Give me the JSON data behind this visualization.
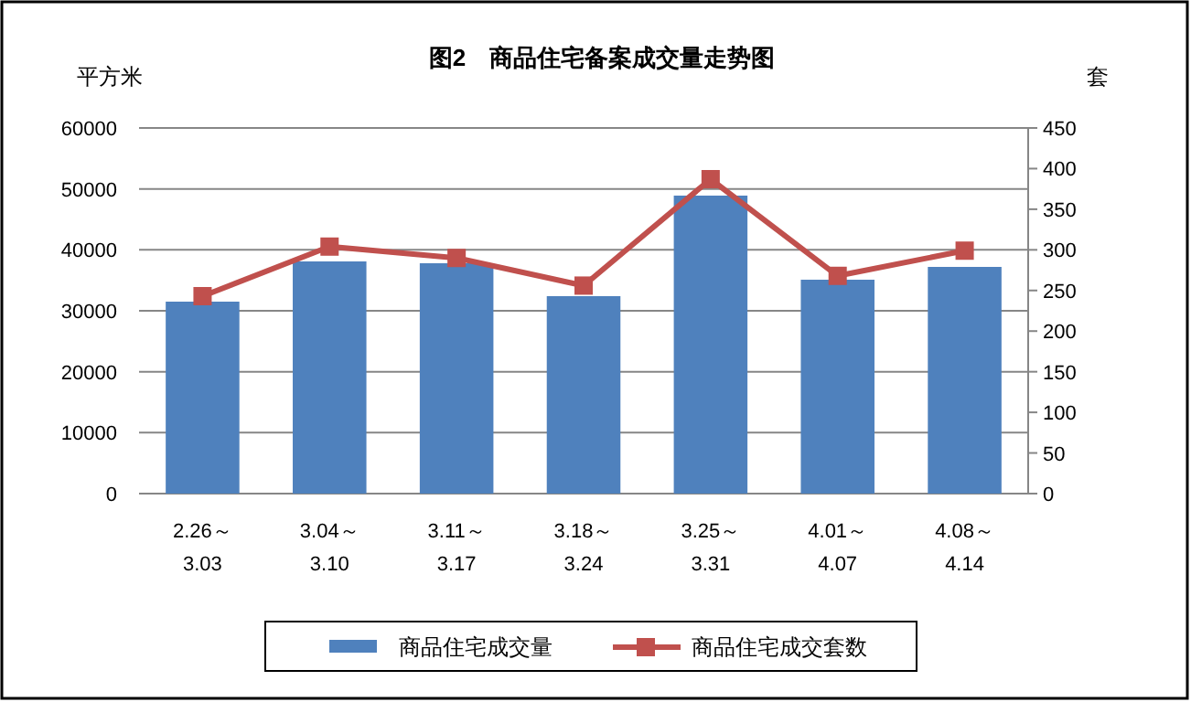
{
  "chart_data": {
    "type": "bar",
    "title": "图2　商品住宅备案成交量走势图",
    "ylabel": "平方米",
    "y2label": "套",
    "categories": [
      "2.26～\n3.03",
      "3.04～\n3.10",
      "3.11～\n3.17",
      "3.18～\n3.24",
      "3.25～\n3.31",
      "4.01～\n4.07",
      "4.08～\n4.14"
    ],
    "series": [
      {
        "name": "商品住宅成交量",
        "color": "#4f81bd",
        "values": [
          31500,
          38100,
          37800,
          32400,
          48900,
          35100,
          37200
        ]
      },
      {
        "name": "商品住宅成交套数",
        "type": "line",
        "axis": "y2",
        "color": "#c0504d",
        "marker": "square",
        "values": [
          243,
          304,
          290,
          256,
          387,
          268,
          299
        ]
      }
    ],
    "ylim": [
      0,
      60000
    ],
    "yticks": [
      0,
      10000,
      20000,
      30000,
      40000,
      50000,
      60000
    ],
    "y2lim": [
      0,
      450
    ],
    "y2ticks": [
      0,
      50,
      100,
      150,
      200,
      250,
      300,
      350,
      400,
      450
    ],
    "grid": "y",
    "legend": "bottom"
  }
}
